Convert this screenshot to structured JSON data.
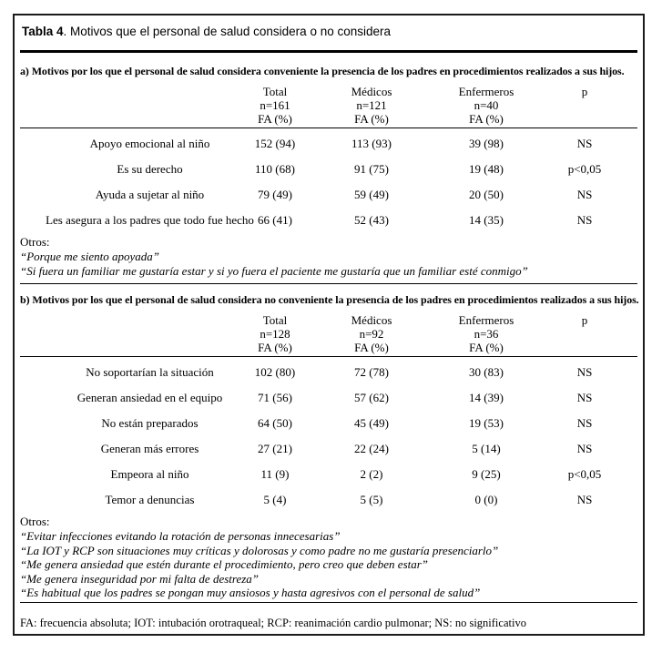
{
  "page": {
    "title_bold": "Tabla 4",
    "title_rest": ". Motivos que el personal de salud considera o no considera",
    "otros_label": "Otros:",
    "footnote": "FA: frecuencia absoluta; IOT: intubación orotraqueal; RCP: reanimación cardio pulmonar; NS: no significativo"
  },
  "a": {
    "heading": "a) Motivos por los que el personal de salud considera conveniente la presencia de los padres en procedimientos realizados a sus hijos.",
    "headers": {
      "total": [
        "Total",
        "n=161",
        "FA (%)"
      ],
      "medicos": [
        "Médicos",
        "n=121",
        "FA (%)"
      ],
      "enfermeros": [
        "Enfermeros",
        "n=40",
        "FA (%)"
      ],
      "p": "p"
    },
    "rows": [
      {
        "label": "Apoyo emocional al niño",
        "total": "152 (94)",
        "medicos": "113 (93)",
        "enfermeros": "39 (98)",
        "p": "NS"
      },
      {
        "label": "Es su derecho",
        "total": "110 (68)",
        "medicos": "91 (75)",
        "enfermeros": "19 (48)",
        "p": "p<0,05"
      },
      {
        "label": "Ayuda a sujetar al niño",
        "total": "79 (49)",
        "medicos": "59 (49)",
        "enfermeros": "20 (50)",
        "p": "NS"
      },
      {
        "label": "Les asegura a los padres que todo fue hecho",
        "total": "66 (41)",
        "medicos": "52 (43)",
        "enfermeros": "14 (35)",
        "p": "NS"
      }
    ],
    "quotes": [
      "“Porque me siento apoyada”",
      "“Si fuera un familiar me gustaría estar y si yo fuera el paciente me gustaría que un familiar esté conmigo”"
    ]
  },
  "b": {
    "heading": "b) Motivos por los que el personal de salud considera no conveniente la presencia de los padres en procedimientos realizados a sus hijos.",
    "headers": {
      "total": [
        "Total",
        "n=128",
        "FA (%)"
      ],
      "medicos": [
        "Médicos",
        "n=92",
        "FA (%)"
      ],
      "enfermeros": [
        "Enfermeros",
        "n=36",
        "FA (%)"
      ],
      "p": "p"
    },
    "rows": [
      {
        "label": "No soportarían la situación",
        "total": "102 (80)",
        "medicos": "72 (78)",
        "enfermeros": "30 (83)",
        "p": "NS"
      },
      {
        "label": "Generan ansiedad en el equipo",
        "total": "71 (56)",
        "medicos": "57 (62)",
        "enfermeros": "14 (39)",
        "p": "NS"
      },
      {
        "label": "No están preparados",
        "total": "64 (50)",
        "medicos": "45 (49)",
        "enfermeros": "19 (53)",
        "p": "NS"
      },
      {
        "label": "Generan más errores",
        "total": "27 (21)",
        "medicos": "22 (24)",
        "enfermeros": "5 (14)",
        "p": "NS"
      },
      {
        "label": "Empeora al niño",
        "total": "11 (9)",
        "medicos": "2 (2)",
        "enfermeros": "9 (25)",
        "p": "p<0,05"
      },
      {
        "label": "Temor a denuncias",
        "total": "5 (4)",
        "medicos": "5 (5)",
        "enfermeros": "0 (0)",
        "p": "NS"
      }
    ],
    "quotes": [
      "“Evitar infecciones evitando la rotación de personas innecesarias”",
      "“La IOT y RCP son situaciones muy críticas y dolorosas y como padre no me gustaría presenciarlo”",
      "“Me genera ansiedad que estén durante el procedimiento, pero creo que deben estar”",
      "“Me genera inseguridad por mi falta de destreza”",
      "“Es habitual que los padres se pongan muy ansiosos y hasta agresivos con el personal de salud”"
    ]
  }
}
